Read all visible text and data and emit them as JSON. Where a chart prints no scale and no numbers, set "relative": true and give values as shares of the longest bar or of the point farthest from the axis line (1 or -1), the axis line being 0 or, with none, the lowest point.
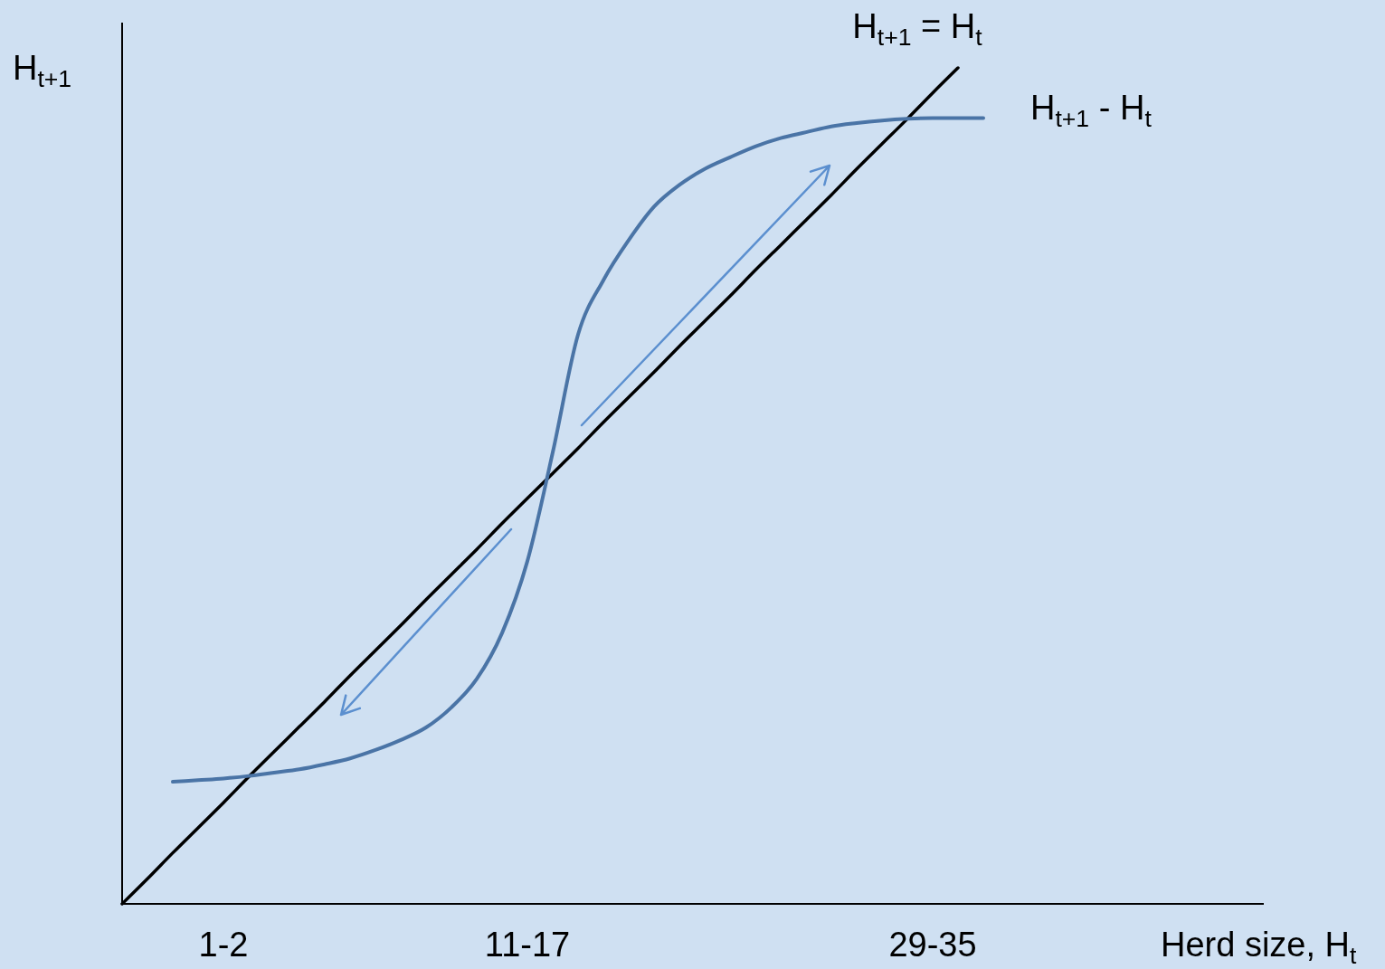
{
  "chart_data": {
    "type": "line",
    "relative": true,
    "xlabel": "Herd size, H$_{t}$",
    "ylabel": "H$_{t+1}$",
    "categories": [
      null,
      null,
      null,
      null,
      "1-2",
      null,
      null,
      null,
      null,
      null,
      null,
      null,
      null,
      null,
      null,
      null,
      "11-17",
      null,
      null,
      null,
      null,
      null,
      null,
      null,
      null,
      null,
      null,
      null,
      null,
      null,
      null,
      null,
      "29-35",
      null,
      null,
      null,
      null,
      null,
      null,
      null,
      null,
      null,
      null,
      null,
      null,
      null
    ],
    "series": [
      {
        "name": "H$_{t+1}$ = H$_{t}$",
        "color": "#000000",
        "values": [
          0,
          0.03,
          0.061,
          0.091,
          0.121,
          0.152,
          0.182,
          0.212,
          0.242,
          0.273,
          0.303,
          0.333,
          0.364,
          0.394,
          0.424,
          0.455,
          0.485,
          0.515,
          0.545,
          0.576,
          0.606,
          0.636,
          0.667,
          0.697,
          0.727,
          0.758,
          0.788,
          0.818,
          0.848,
          0.879,
          0.909,
          0.939,
          0.97,
          1.0,
          null,
          null,
          null,
          null,
          null,
          null,
          null,
          null,
          null,
          null,
          null,
          null
        ]
      },
      {
        "name": "H$_{t+1}$ - H$_{t}$",
        "color": "#4a74a6",
        "values": [
          null,
          null,
          0.146,
          0.148,
          0.15,
          0.153,
          0.157,
          0.161,
          0.167,
          0.174,
          0.184,
          0.196,
          0.211,
          0.235,
          0.269,
          0.324,
          0.41,
          0.54,
          0.681,
          0.746,
          0.794,
          0.834,
          0.86,
          0.879,
          0.893,
          0.906,
          0.916,
          0.923,
          0.93,
          0.934,
          0.937,
          0.939,
          0.94,
          0.94,
          0.94,
          null,
          null,
          null,
          null,
          null,
          null,
          null,
          null,
          null,
          null,
          null
        ]
      }
    ]
  }
}
